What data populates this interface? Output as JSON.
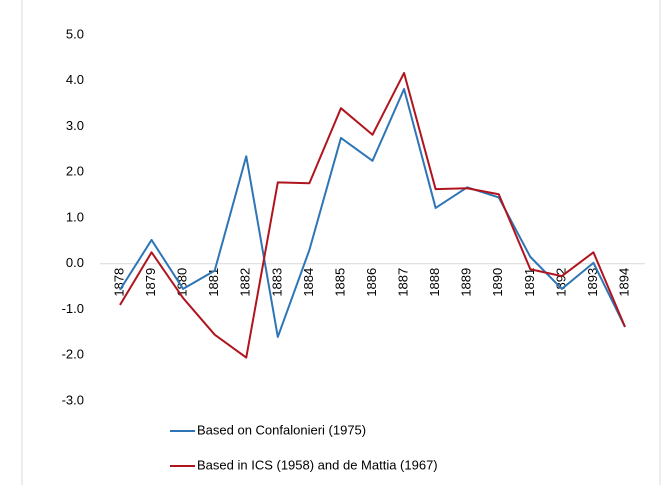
{
  "chart_data": {
    "type": "line",
    "categories": [
      "1878",
      "1879",
      "1880",
      "1881",
      "1882",
      "1883",
      "1884",
      "1885",
      "1886",
      "1887",
      "1888",
      "1889",
      "1890",
      "1891",
      "1892",
      "1893",
      "1894"
    ],
    "series": [
      {
        "name": "Based on Confalonieri (1975)",
        "color": "#2e75b6",
        "values": [
          -0.57,
          0.52,
          -0.55,
          -0.15,
          2.35,
          -1.6,
          0.3,
          2.75,
          2.25,
          3.82,
          1.22,
          1.67,
          1.45,
          0.15,
          -0.55,
          0.02,
          -1.38
        ]
      },
      {
        "name": "Based in ICS (1958) and de Mattia (1967)",
        "color": "#b0151f",
        "values": [
          -0.9,
          0.25,
          -0.75,
          -1.55,
          -2.05,
          1.78,
          1.76,
          3.4,
          2.82,
          4.17,
          1.63,
          1.65,
          1.52,
          -0.12,
          -0.27,
          0.25,
          -1.38
        ]
      }
    ],
    "ylim": [
      -3,
      5
    ],
    "yticks": [
      {
        "value": -3,
        "label": "-3.0"
      },
      {
        "value": -2,
        "label": "-2.0"
      },
      {
        "value": -1,
        "label": "-1.0"
      },
      {
        "value": 0,
        "label": "0.0"
      },
      {
        "value": 1,
        "label": "1.0"
      },
      {
        "value": 2,
        "label": "2.0"
      },
      {
        "value": 3,
        "label": "3.0"
      },
      {
        "value": 4,
        "label": "4.0"
      },
      {
        "value": 5,
        "label": "5.0"
      }
    ],
    "grid": false,
    "legend": "bottom"
  }
}
